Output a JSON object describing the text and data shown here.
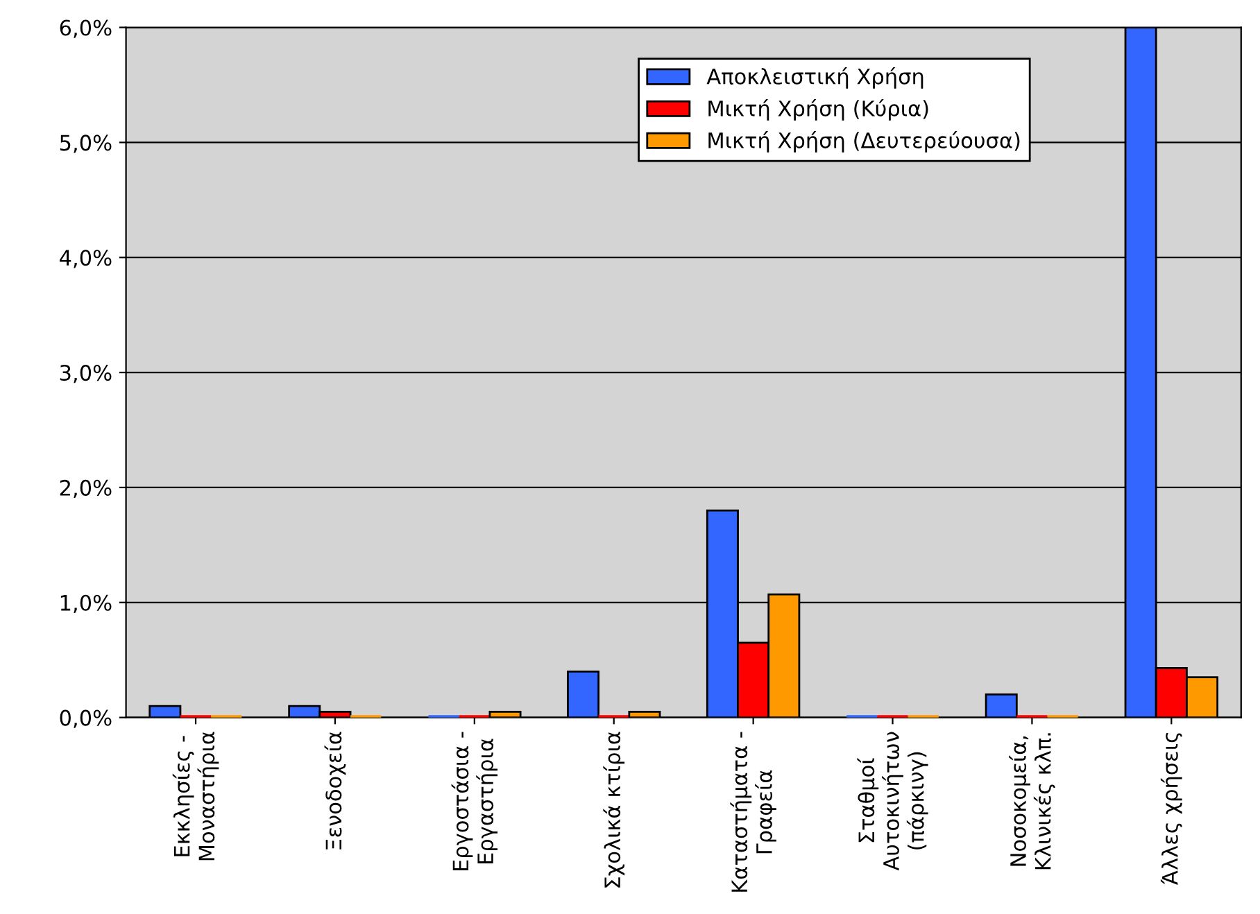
{
  "chart_data": {
    "type": "bar",
    "categories": [
      "Εκκλησίες -\nΜοναστήρια",
      "Ξενοδοχεία",
      "Εργοστάσια -\nΕργαστήρια",
      "Σχολικά κτίρια",
      "Καταστήματα -\nΓραφεία",
      "Σταθμοί\nΑυτοκινήτων\n(πάρκινγ)",
      "Νοσοκομεία,\nΚλινικές κλπ.",
      "Άλλες χρήσεις"
    ],
    "series": [
      {
        "name": "Αποκλειστική Χρήση",
        "color": "#3366ff",
        "values": [
          0.1,
          0.1,
          0.0,
          0.4,
          1.8,
          0.0,
          0.2,
          6.0
        ]
      },
      {
        "name": "Μικτή Χρήση (Κύρια)",
        "color": "#ff0000",
        "values": [
          0.0,
          0.05,
          0.0,
          0.0,
          0.65,
          0.0,
          0.0,
          0.43
        ]
      },
      {
        "name": "Μικτή Χρήση (Δευτερεύουσα)",
        "color": "#ff9900",
        "values": [
          0.0,
          0.0,
          0.05,
          0.05,
          1.07,
          0.0,
          0.0,
          0.35
        ]
      }
    ],
    "ylim": [
      0,
      6
    ],
    "yticks": [
      {
        "value": 0,
        "label": "0,0%"
      },
      {
        "value": 1,
        "label": "1,0%"
      },
      {
        "value": 2,
        "label": "2,0%"
      },
      {
        "value": 3,
        "label": "3,0%"
      },
      {
        "value": 4,
        "label": "4,0%"
      },
      {
        "value": 5,
        "label": "5,0%"
      },
      {
        "value": 6,
        "label": "6,0%"
      }
    ],
    "grid": "y",
    "legend": "top right"
  }
}
